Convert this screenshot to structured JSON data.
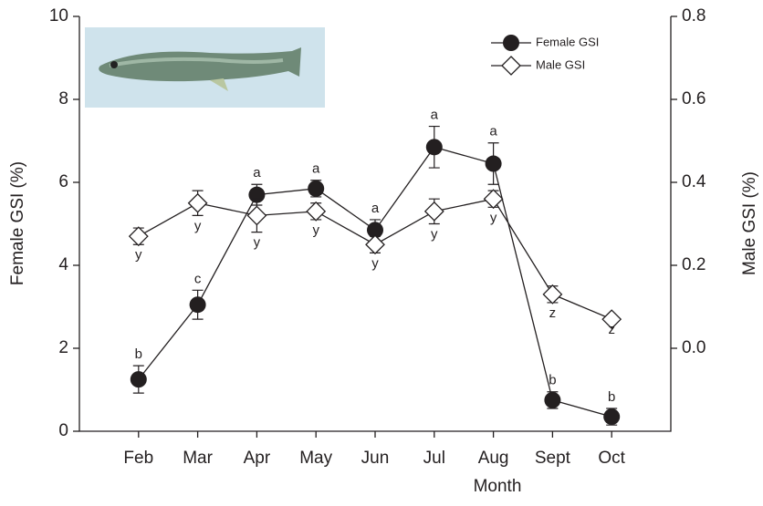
{
  "chart_data": {
    "type": "line",
    "x_label": "Month",
    "y_label": "Female GSI (%)",
    "y2_label": "Male GSI (%)",
    "categories": [
      "Feb",
      "Mar",
      "Apr",
      "May",
      "Jun",
      "Jul",
      "Aug",
      "Sept",
      "Oct"
    ],
    "ylim": [
      0,
      10
    ],
    "yticks": [
      0,
      2,
      4,
      6,
      8,
      10
    ],
    "y2lim": [
      -0.2,
      0.8
    ],
    "y2ticks": [
      {
        "value": 0,
        "label": "0.0"
      },
      0.2,
      0.4,
      0.6,
      0.8
    ],
    "legend": "upper right",
    "series": [
      {
        "name": "Female GSI",
        "color": "#231f20",
        "marker": "circle",
        "axis": "y",
        "values": [
          1.25,
          3.05,
          5.7,
          5.85,
          4.85,
          6.85,
          6.45,
          0.75,
          0.35
        ],
        "errors": [
          0.33,
          0.35,
          0.25,
          0.2,
          0.25,
          0.5,
          0.5,
          0.2,
          0.2
        ],
        "letters": [
          "b",
          "c",
          "a",
          "a",
          "a",
          "a",
          "a",
          "b",
          "b"
        ]
      },
      {
        "name": "Male GSI",
        "color": "#231f20",
        "marker": "diamond",
        "axis": "y2",
        "values": [
          0.27,
          0.35,
          0.32,
          0.33,
          0.25,
          0.33,
          0.36,
          0.13,
          0.07
        ],
        "errors": [
          0.02,
          0.03,
          0.04,
          0.02,
          0.02,
          0.03,
          0.02,
          0.02,
          0
        ],
        "letters": [
          "y",
          "y",
          "y",
          "y",
          "y",
          "y",
          "y",
          "z",
          "z"
        ]
      }
    ]
  }
}
